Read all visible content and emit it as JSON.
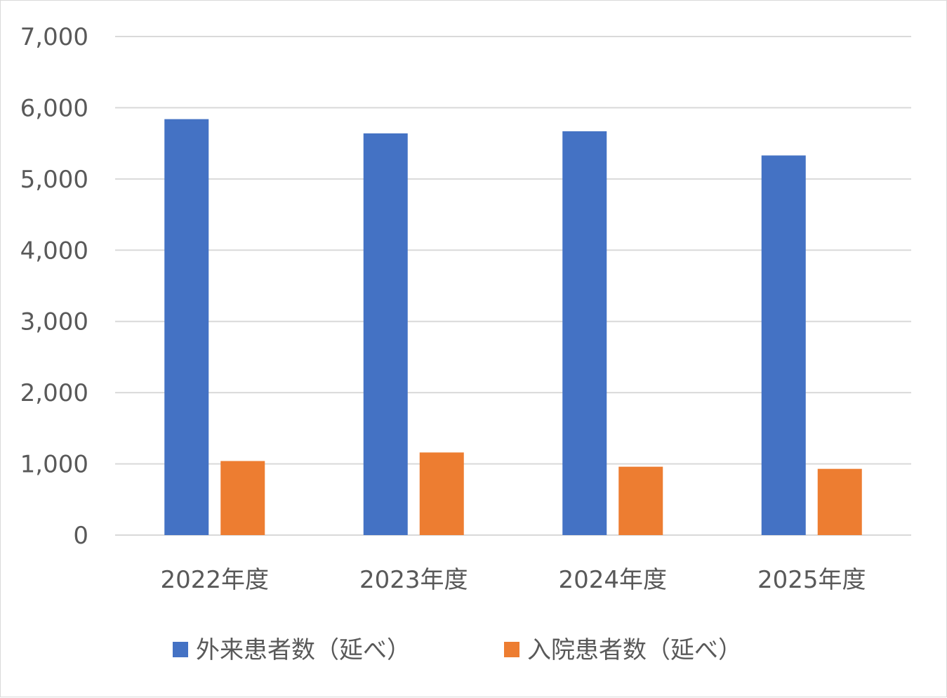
{
  "chart_data": {
    "type": "bar",
    "categories": [
      "2022年度",
      "2023年度",
      "2024年度",
      "2025年度"
    ],
    "series": [
      {
        "name": "外来患者数（延べ）",
        "color": "#4472C4",
        "values": [
          5840,
          5640,
          5670,
          5330
        ]
      },
      {
        "name": "入院患者数（延べ）",
        "color": "#ED7D31",
        "values": [
          1040,
          1160,
          960,
          930
        ]
      }
    ],
    "ylim": [
      0,
      7000
    ],
    "yticks": [
      "0",
      "1,000",
      "2,000",
      "3,000",
      "4,000",
      "5,000",
      "6,000",
      "7,000"
    ],
    "grid": true,
    "legend_position": "bottom",
    "gridline_color": "#d9d9d9",
    "axis_label_color": "#595959"
  }
}
